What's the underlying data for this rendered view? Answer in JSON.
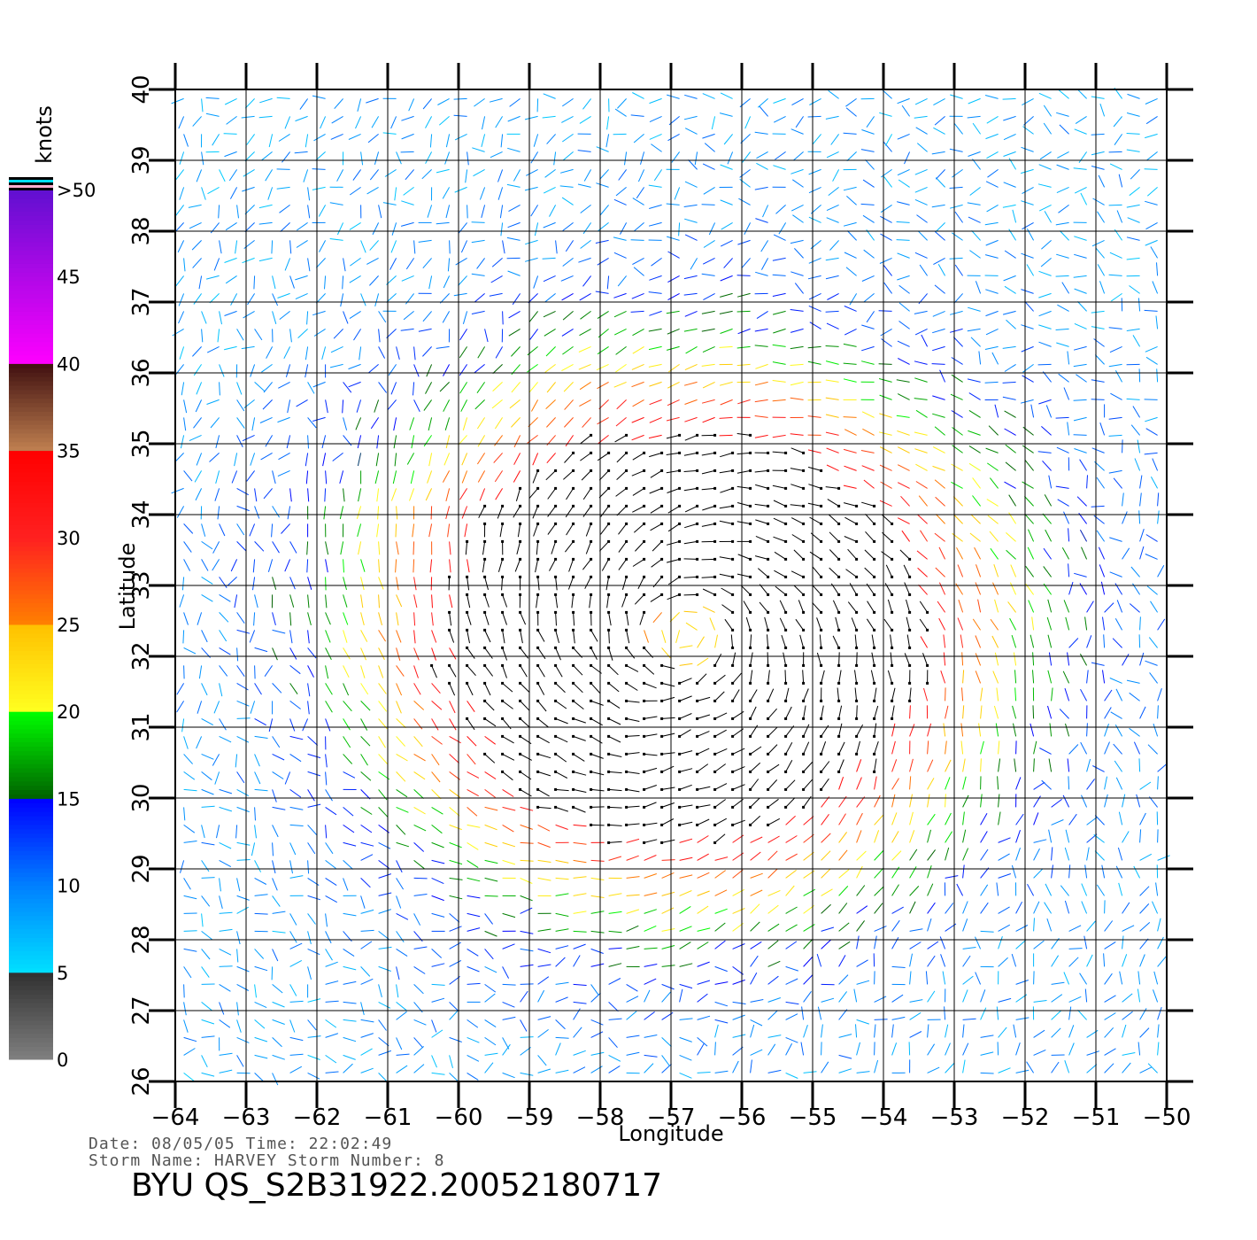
{
  "chart_data": {
    "type": "vector-field",
    "xlabel": "Longitude",
    "ylabel": "Latitude",
    "xlim": [
      -64,
      -50
    ],
    "ylim": [
      26,
      40
    ],
    "x_ticks": [
      -64,
      -63,
      -62,
      -61,
      -60,
      -59,
      -58,
      -57,
      -56,
      -55,
      -54,
      -53,
      -52,
      -51,
      -50
    ],
    "y_ticks": [
      26,
      27,
      28,
      29,
      30,
      31,
      32,
      33,
      34,
      35,
      36,
      37,
      38,
      39,
      40
    ],
    "grid": true,
    "storm_center": {
      "lon": -56.8,
      "lat": 32.3
    },
    "max_wind_knots": 38,
    "colorbar": {
      "unit": "knots",
      "ticks": [
        "0",
        "5",
        "10",
        "15",
        "20",
        "25",
        "30",
        "35",
        "40",
        "45",
        ">50"
      ],
      "colors": [
        {
          "v": 0,
          "c": "#808080"
        },
        {
          "v": 5,
          "c": "#303030"
        },
        {
          "v": 5.01,
          "c": "#00e0ff"
        },
        {
          "v": 10,
          "c": "#0080ff"
        },
        {
          "v": 15,
          "c": "#0000ff"
        },
        {
          "v": 15.01,
          "c": "#006000"
        },
        {
          "v": 20,
          "c": "#00ff00"
        },
        {
          "v": 20.01,
          "c": "#ffff20"
        },
        {
          "v": 25,
          "c": "#ffc000"
        },
        {
          "v": 25.01,
          "c": "#ff8000"
        },
        {
          "v": 30,
          "c": "#ff2020"
        },
        {
          "v": 35,
          "c": "#ff0000"
        },
        {
          "v": 35.01,
          "c": "#c08050"
        },
        {
          "v": 40,
          "c": "#401010"
        },
        {
          "v": 40.01,
          "c": "#ff00ff"
        },
        {
          "v": 50,
          "c": "#6010d0"
        }
      ]
    }
  },
  "footer": {
    "line1": "Date: 08/05/05   Time: 22:02:49",
    "line2": "Storm Name: HARVEY   Storm Number: 8",
    "title": "BYU QS_S2B31922.20052180717"
  }
}
